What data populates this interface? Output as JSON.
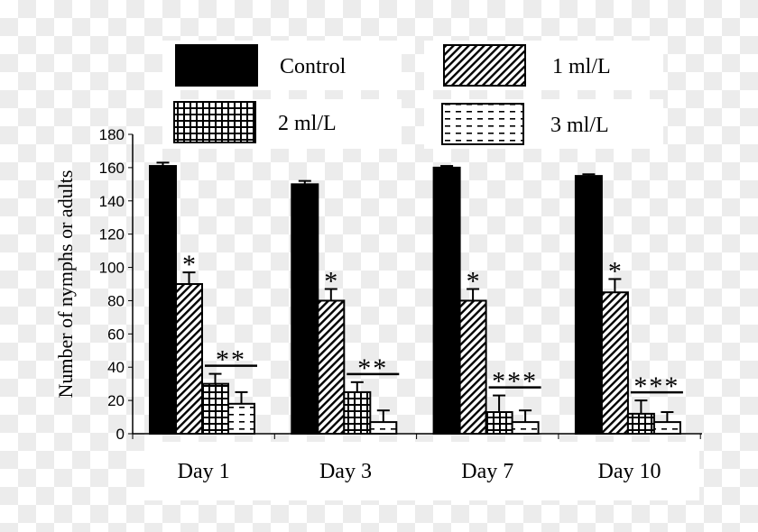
{
  "chart_data": {
    "type": "bar",
    "title": "",
    "xlabel": "",
    "ylabel": "Number of nymphs or adults",
    "ylim": [
      0,
      180
    ],
    "yticks": [
      0,
      20,
      40,
      60,
      80,
      100,
      120,
      140,
      160,
      180
    ],
    "categories": [
      "Day 1",
      "Day 3",
      "Day 7",
      "Day 10"
    ],
    "legend_position": "top",
    "series": [
      {
        "name": "Control",
        "pattern": "solid",
        "values": [
          161,
          150,
          160,
          155
        ],
        "errors": [
          2,
          2,
          1,
          1
        ]
      },
      {
        "name": "1 ml/L",
        "pattern": "diagonal",
        "values": [
          90,
          80,
          80,
          85
        ],
        "errors": [
          7,
          7,
          7,
          8
        ]
      },
      {
        "name": "2 ml/L",
        "pattern": "grid",
        "values": [
          30,
          25,
          13,
          12
        ],
        "errors": [
          6,
          6,
          10,
          8
        ]
      },
      {
        "name": "3 ml/L",
        "pattern": "dashes",
        "values": [
          18,
          7,
          7,
          7
        ],
        "errors": [
          7,
          7,
          7,
          6
        ]
      }
    ],
    "annotations": {
      "single": "*",
      "groups": [
        "**",
        "**",
        "***",
        "***"
      ]
    }
  }
}
